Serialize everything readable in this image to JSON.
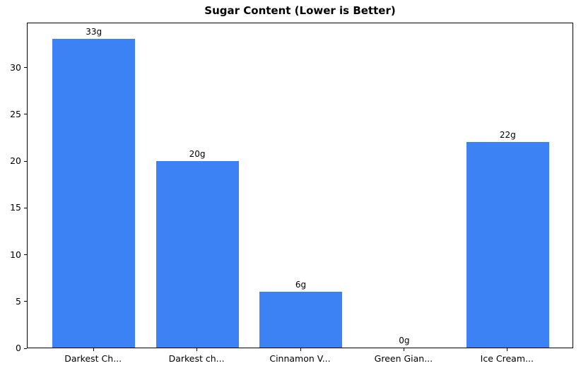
{
  "chart_data": {
    "type": "bar",
    "title": "Sugar Content (Lower is Better)",
    "categories": [
      "Darkest Ch...",
      "Darkest ch...",
      "Cinnamon V...",
      "Green Gian...",
      "Ice Cream..."
    ],
    "values": [
      33,
      19.9,
      6,
      0,
      22
    ],
    "bar_labels": [
      "33g",
      "20g",
      "6g",
      "0g",
      "22g"
    ],
    "bar_color": "#3d82f4",
    "yticks": [
      0,
      5,
      10,
      15,
      20,
      25,
      30
    ],
    "ylim": [
      0,
      34.8
    ],
    "xlabel": "",
    "ylabel": "",
    "grid": false,
    "legend_position": "none",
    "frame": "full-box",
    "background_color": "#ffffff",
    "text_color": "#000000"
  }
}
